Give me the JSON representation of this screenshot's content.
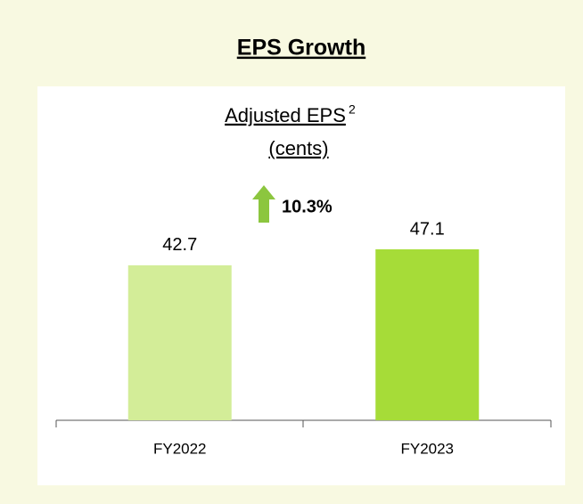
{
  "chart_data": {
    "type": "bar",
    "title": "EPS Growth",
    "subtitle": "Adjusted EPS",
    "subtitle_superscript": "2",
    "unit": "(cents)",
    "annotation": "10.3%",
    "categories": [
      "FY2022",
      "FY2023"
    ],
    "values": [
      42.7,
      47.1
    ],
    "colors": [
      "#d3ed98",
      "#a6dc38"
    ]
  }
}
